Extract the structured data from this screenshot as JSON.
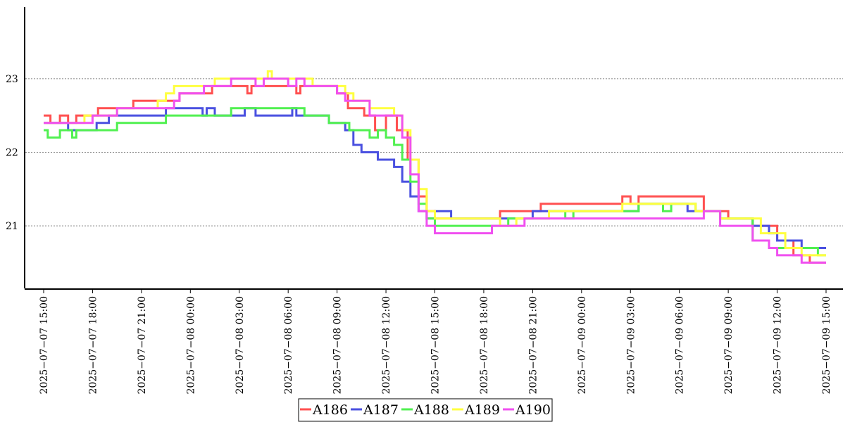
{
  "chart_data": {
    "type": "line",
    "title": "",
    "xlabel": "",
    "ylabel": "",
    "grid": "horizontal dotted",
    "legend_position": "bottom-center",
    "xlim": [
      "2025-07-07 15:00",
      "2025-07-09 15:00"
    ],
    "ylim": [
      20.15,
      23.85
    ],
    "y_ticks": [
      21,
      22,
      23
    ],
    "x_ticks": [
      "2025-07-07 15:00",
      "2025-07-07 18:00",
      "2025-07-07 21:00",
      "2025-07-08 00:00",
      "2025-07-08 03:00",
      "2025-07-08 06:00",
      "2025-07-08 09:00",
      "2025-07-08 12:00",
      "2025-07-08 15:00",
      "2025-07-08 18:00",
      "2025-07-08 21:00",
      "2025-07-09 00:00",
      "2025-07-09 03:00",
      "2025-07-09 06:00",
      "2025-07-09 09:00",
      "2025-07-09 12:00",
      "2025-07-09 15:00"
    ],
    "series": [
      {
        "name": "A186",
        "color": "#ff5050",
        "points": [
          [
            "2025-07-07 15:00",
            22.5
          ],
          [
            "2025-07-07 15:25",
            22.4
          ],
          [
            "2025-07-07 16:00",
            22.5
          ],
          [
            "2025-07-07 16:30",
            22.4
          ],
          [
            "2025-07-07 17:00",
            22.5
          ],
          [
            "2025-07-07 18:00",
            22.5
          ],
          [
            "2025-07-07 18:20",
            22.6
          ],
          [
            "2025-07-07 20:00",
            22.6
          ],
          [
            "2025-07-07 20:30",
            22.7
          ],
          [
            "2025-07-07 23:00",
            22.7
          ],
          [
            "2025-07-07 23:20",
            22.8
          ],
          [
            "2025-07-08 01:00",
            22.8
          ],
          [
            "2025-07-08 01:20",
            22.9
          ],
          [
            "2025-07-08 03:00",
            22.9
          ],
          [
            "2025-07-08 03:30",
            22.8
          ],
          [
            "2025-07-08 03:45",
            22.9
          ],
          [
            "2025-07-08 06:00",
            22.9
          ],
          [
            "2025-07-08 06:30",
            22.8
          ],
          [
            "2025-07-08 06:45",
            22.9
          ],
          [
            "2025-07-08 09:00",
            22.8
          ],
          [
            "2025-07-08 09:40",
            22.6
          ],
          [
            "2025-07-08 10:40",
            22.5
          ],
          [
            "2025-07-08 11:20",
            22.3
          ],
          [
            "2025-07-08 12:00",
            22.5
          ],
          [
            "2025-07-08 12:40",
            22.3
          ],
          [
            "2025-07-08 13:20",
            21.9
          ],
          [
            "2025-07-08 14:00",
            21.4
          ],
          [
            "2025-07-08 14:30",
            21.2
          ],
          [
            "2025-07-08 15:00",
            21.1
          ],
          [
            "2025-07-08 16:00",
            21.1
          ],
          [
            "2025-07-08 19:00",
            21.2
          ],
          [
            "2025-07-08 21:00",
            21.2
          ],
          [
            "2025-07-08 21:30",
            21.3
          ],
          [
            "2025-07-09 02:00",
            21.3
          ],
          [
            "2025-07-09 02:30",
            21.4
          ],
          [
            "2025-07-09 03:00",
            21.3
          ],
          [
            "2025-07-09 03:30",
            21.4
          ],
          [
            "2025-07-09 07:00",
            21.4
          ],
          [
            "2025-07-09 07:30",
            21.2
          ],
          [
            "2025-07-09 08:30",
            21.2
          ],
          [
            "2025-07-09 09:00",
            21.1
          ],
          [
            "2025-07-09 10:30",
            21.0
          ],
          [
            "2025-07-09 12:00",
            20.8
          ],
          [
            "2025-07-09 13:00",
            20.6
          ],
          [
            "2025-07-09 14:00",
            20.5
          ],
          [
            "2025-07-09 15:00",
            20.5
          ]
        ]
      },
      {
        "name": "A187",
        "color": "#4a50e0",
        "points": [
          [
            "2025-07-07 15:00",
            22.4
          ],
          [
            "2025-07-07 16:30",
            22.3
          ],
          [
            "2025-07-07 18:00",
            22.3
          ],
          [
            "2025-07-07 18:15",
            22.4
          ],
          [
            "2025-07-07 19:00",
            22.5
          ],
          [
            "2025-07-07 22:00",
            22.5
          ],
          [
            "2025-07-07 22:30",
            22.6
          ],
          [
            "2025-07-08 00:30",
            22.6
          ],
          [
            "2025-07-08 00:45",
            22.5
          ],
          [
            "2025-07-08 01:00",
            22.6
          ],
          [
            "2025-07-08 01:30",
            22.5
          ],
          [
            "2025-07-08 03:00",
            22.5
          ],
          [
            "2025-07-08 03:20",
            22.6
          ],
          [
            "2025-07-08 04:00",
            22.5
          ],
          [
            "2025-07-08 06:00",
            22.5
          ],
          [
            "2025-07-08 06:15",
            22.6
          ],
          [
            "2025-07-08 06:30",
            22.5
          ],
          [
            "2025-07-08 08:00",
            22.5
          ],
          [
            "2025-07-08 08:30",
            22.4
          ],
          [
            "2025-07-08 09:30",
            22.3
          ],
          [
            "2025-07-08 10:00",
            22.1
          ],
          [
            "2025-07-08 10:30",
            22.0
          ],
          [
            "2025-07-08 11:00",
            22.0
          ],
          [
            "2025-07-08 11:30",
            21.9
          ],
          [
            "2025-07-08 12:30",
            21.8
          ],
          [
            "2025-07-08 13:00",
            21.6
          ],
          [
            "2025-07-08 13:30",
            21.4
          ],
          [
            "2025-07-08 14:00",
            21.2
          ],
          [
            "2025-07-08 14:30",
            21.1
          ],
          [
            "2025-07-08 15:00",
            21.2
          ],
          [
            "2025-07-08 16:00",
            21.1
          ],
          [
            "2025-07-08 20:00",
            21.1
          ],
          [
            "2025-07-08 21:00",
            21.2
          ],
          [
            "2025-07-09 03:00",
            21.2
          ],
          [
            "2025-07-09 03:30",
            21.3
          ],
          [
            "2025-07-09 06:00",
            21.3
          ],
          [
            "2025-07-09 06:30",
            21.2
          ],
          [
            "2025-07-09 08:00",
            21.2
          ],
          [
            "2025-07-09 08:30",
            21.1
          ],
          [
            "2025-07-09 10:00",
            21.1
          ],
          [
            "2025-07-09 10:30",
            21.0
          ],
          [
            "2025-07-09 11:30",
            20.9
          ],
          [
            "2025-07-09 12:00",
            20.8
          ],
          [
            "2025-07-09 13:30",
            20.7
          ],
          [
            "2025-07-09 15:00",
            20.7
          ]
        ]
      },
      {
        "name": "A188",
        "color": "#50f050",
        "points": [
          [
            "2025-07-07 15:00",
            22.3
          ],
          [
            "2025-07-07 15:15",
            22.2
          ],
          [
            "2025-07-07 16:00",
            22.3
          ],
          [
            "2025-07-07 16:45",
            22.2
          ],
          [
            "2025-07-07 17:00",
            22.3
          ],
          [
            "2025-07-07 19:00",
            22.3
          ],
          [
            "2025-07-07 19:30",
            22.4
          ],
          [
            "2025-07-07 22:00",
            22.4
          ],
          [
            "2025-07-07 22:30",
            22.5
          ],
          [
            "2025-07-08 02:00",
            22.5
          ],
          [
            "2025-07-08 02:30",
            22.6
          ],
          [
            "2025-07-08 06:00",
            22.6
          ],
          [
            "2025-07-08 07:00",
            22.5
          ],
          [
            "2025-07-08 08:00",
            22.5
          ],
          [
            "2025-07-08 08:30",
            22.4
          ],
          [
            "2025-07-08 09:30",
            22.4
          ],
          [
            "2025-07-08 09:45",
            22.3
          ],
          [
            "2025-07-08 10:30",
            22.3
          ],
          [
            "2025-07-08 11:00",
            22.2
          ],
          [
            "2025-07-08 11:30",
            22.3
          ],
          [
            "2025-07-08 12:00",
            22.2
          ],
          [
            "2025-07-08 12:30",
            22.1
          ],
          [
            "2025-07-08 13:00",
            21.9
          ],
          [
            "2025-07-08 13:30",
            21.6
          ],
          [
            "2025-07-08 14:00",
            21.3
          ],
          [
            "2025-07-08 14:30",
            21.1
          ],
          [
            "2025-07-08 15:00",
            21.0
          ],
          [
            "2025-07-08 19:00",
            21.0
          ],
          [
            "2025-07-08 19:30",
            21.1
          ],
          [
            "2025-07-08 21:30",
            21.1
          ],
          [
            "2025-07-08 22:00",
            21.2
          ],
          [
            "2025-07-08 23:00",
            21.1
          ],
          [
            "2025-07-08 23:30",
            21.2
          ],
          [
            "2025-07-09 03:00",
            21.2
          ],
          [
            "2025-07-09 03:30",
            21.3
          ],
          [
            "2025-07-09 05:00",
            21.2
          ],
          [
            "2025-07-09 05:30",
            21.3
          ],
          [
            "2025-07-09 06:30",
            21.3
          ],
          [
            "2025-07-09 07:00",
            21.2
          ],
          [
            "2025-07-09 08:00",
            21.2
          ],
          [
            "2025-07-09 08:30",
            21.1
          ],
          [
            "2025-07-09 10:00",
            21.1
          ],
          [
            "2025-07-09 10:30",
            20.8
          ],
          [
            "2025-07-09 11:30",
            20.7
          ],
          [
            "2025-07-09 13:30",
            20.7
          ],
          [
            "2025-07-09 14:30",
            20.6
          ],
          [
            "2025-07-09 15:00",
            20.6
          ]
        ]
      },
      {
        "name": "A189",
        "color": "#ffff40",
        "points": [
          [
            "2025-07-07 15:00",
            22.4
          ],
          [
            "2025-07-07 17:00",
            22.4
          ],
          [
            "2025-07-07 17:30",
            22.5
          ],
          [
            "2025-07-07 19:00",
            22.5
          ],
          [
            "2025-07-07 19:30",
            22.6
          ],
          [
            "2025-07-07 22:00",
            22.7
          ],
          [
            "2025-07-07 22:30",
            22.8
          ],
          [
            "2025-07-07 23:00",
            22.9
          ],
          [
            "2025-07-08 01:00",
            22.9
          ],
          [
            "2025-07-08 01:30",
            23.0
          ],
          [
            "2025-07-08 04:30",
            23.0
          ],
          [
            "2025-07-08 04:45",
            23.1
          ],
          [
            "2025-07-08 05:00",
            23.0
          ],
          [
            "2025-07-08 07:00",
            23.0
          ],
          [
            "2025-07-08 07:30",
            22.9
          ],
          [
            "2025-07-08 09:00",
            22.9
          ],
          [
            "2025-07-08 09:30",
            22.8
          ],
          [
            "2025-07-08 10:00",
            22.7
          ],
          [
            "2025-07-08 11:00",
            22.6
          ],
          [
            "2025-07-08 12:00",
            22.6
          ],
          [
            "2025-07-08 12:30",
            22.5
          ],
          [
            "2025-07-08 13:00",
            22.3
          ],
          [
            "2025-07-08 13:30",
            21.9
          ],
          [
            "2025-07-08 14:00",
            21.5
          ],
          [
            "2025-07-08 14:30",
            21.2
          ],
          [
            "2025-07-08 15:00",
            21.1
          ],
          [
            "2025-07-08 18:30",
            21.1
          ],
          [
            "2025-07-08 19:00",
            21.0
          ],
          [
            "2025-07-08 20:00",
            21.1
          ],
          [
            "2025-07-08 22:00",
            21.2
          ],
          [
            "2025-07-09 02:00",
            21.2
          ],
          [
            "2025-07-09 02:30",
            21.3
          ],
          [
            "2025-07-09 06:00",
            21.3
          ],
          [
            "2025-07-09 07:00",
            21.2
          ],
          [
            "2025-07-09 08:00",
            21.2
          ],
          [
            "2025-07-09 08:30",
            21.1
          ],
          [
            "2025-07-09 10:00",
            21.1
          ],
          [
            "2025-07-09 11:00",
            20.9
          ],
          [
            "2025-07-09 12:30",
            20.7
          ],
          [
            "2025-07-09 13:30",
            20.6
          ],
          [
            "2025-07-09 15:00",
            20.6
          ]
        ]
      },
      {
        "name": "A190",
        "color": "#f050f0",
        "points": [
          [
            "2025-07-07 15:00",
            22.4
          ],
          [
            "2025-07-07 17:30",
            22.4
          ],
          [
            "2025-07-07 18:00",
            22.5
          ],
          [
            "2025-07-07 19:30",
            22.6
          ],
          [
            "2025-07-07 22:30",
            22.6
          ],
          [
            "2025-07-07 23:00",
            22.7
          ],
          [
            "2025-07-07 23:20",
            22.8
          ],
          [
            "2025-07-08 00:30",
            22.8
          ],
          [
            "2025-07-08 00:50",
            22.9
          ],
          [
            "2025-07-08 02:00",
            22.9
          ],
          [
            "2025-07-08 02:30",
            23.0
          ],
          [
            "2025-07-08 04:00",
            22.9
          ],
          [
            "2025-07-08 04:30",
            23.0
          ],
          [
            "2025-07-08 06:00",
            22.9
          ],
          [
            "2025-07-08 06:30",
            23.0
          ],
          [
            "2025-07-08 07:00",
            22.9
          ],
          [
            "2025-07-08 09:00",
            22.8
          ],
          [
            "2025-07-08 09:30",
            22.7
          ],
          [
            "2025-07-08 10:30",
            22.7
          ],
          [
            "2025-07-08 11:00",
            22.5
          ],
          [
            "2025-07-08 12:30",
            22.5
          ],
          [
            "2025-07-08 13:00",
            22.2
          ],
          [
            "2025-07-08 13:30",
            21.7
          ],
          [
            "2025-07-08 14:00",
            21.2
          ],
          [
            "2025-07-08 14:30",
            21.0
          ],
          [
            "2025-07-08 15:00",
            20.9
          ],
          [
            "2025-07-08 18:00",
            20.9
          ],
          [
            "2025-07-08 18:30",
            21.0
          ],
          [
            "2025-07-08 20:00",
            21.0
          ],
          [
            "2025-07-08 20:30",
            21.1
          ],
          [
            "2025-07-09 06:00",
            21.1
          ],
          [
            "2025-07-09 07:30",
            21.2
          ],
          [
            "2025-07-09 08:00",
            21.2
          ],
          [
            "2025-07-09 08:30",
            21.0
          ],
          [
            "2025-07-09 10:00",
            21.0
          ],
          [
            "2025-07-09 10:30",
            20.8
          ],
          [
            "2025-07-09 11:30",
            20.7
          ],
          [
            "2025-07-09 12:00",
            20.6
          ],
          [
            "2025-07-09 13:30",
            20.5
          ],
          [
            "2025-07-09 15:00",
            20.5
          ]
        ]
      }
    ]
  },
  "colors": {
    "axis": "#000000",
    "grid": "#808080",
    "background": "#ffffff"
  }
}
